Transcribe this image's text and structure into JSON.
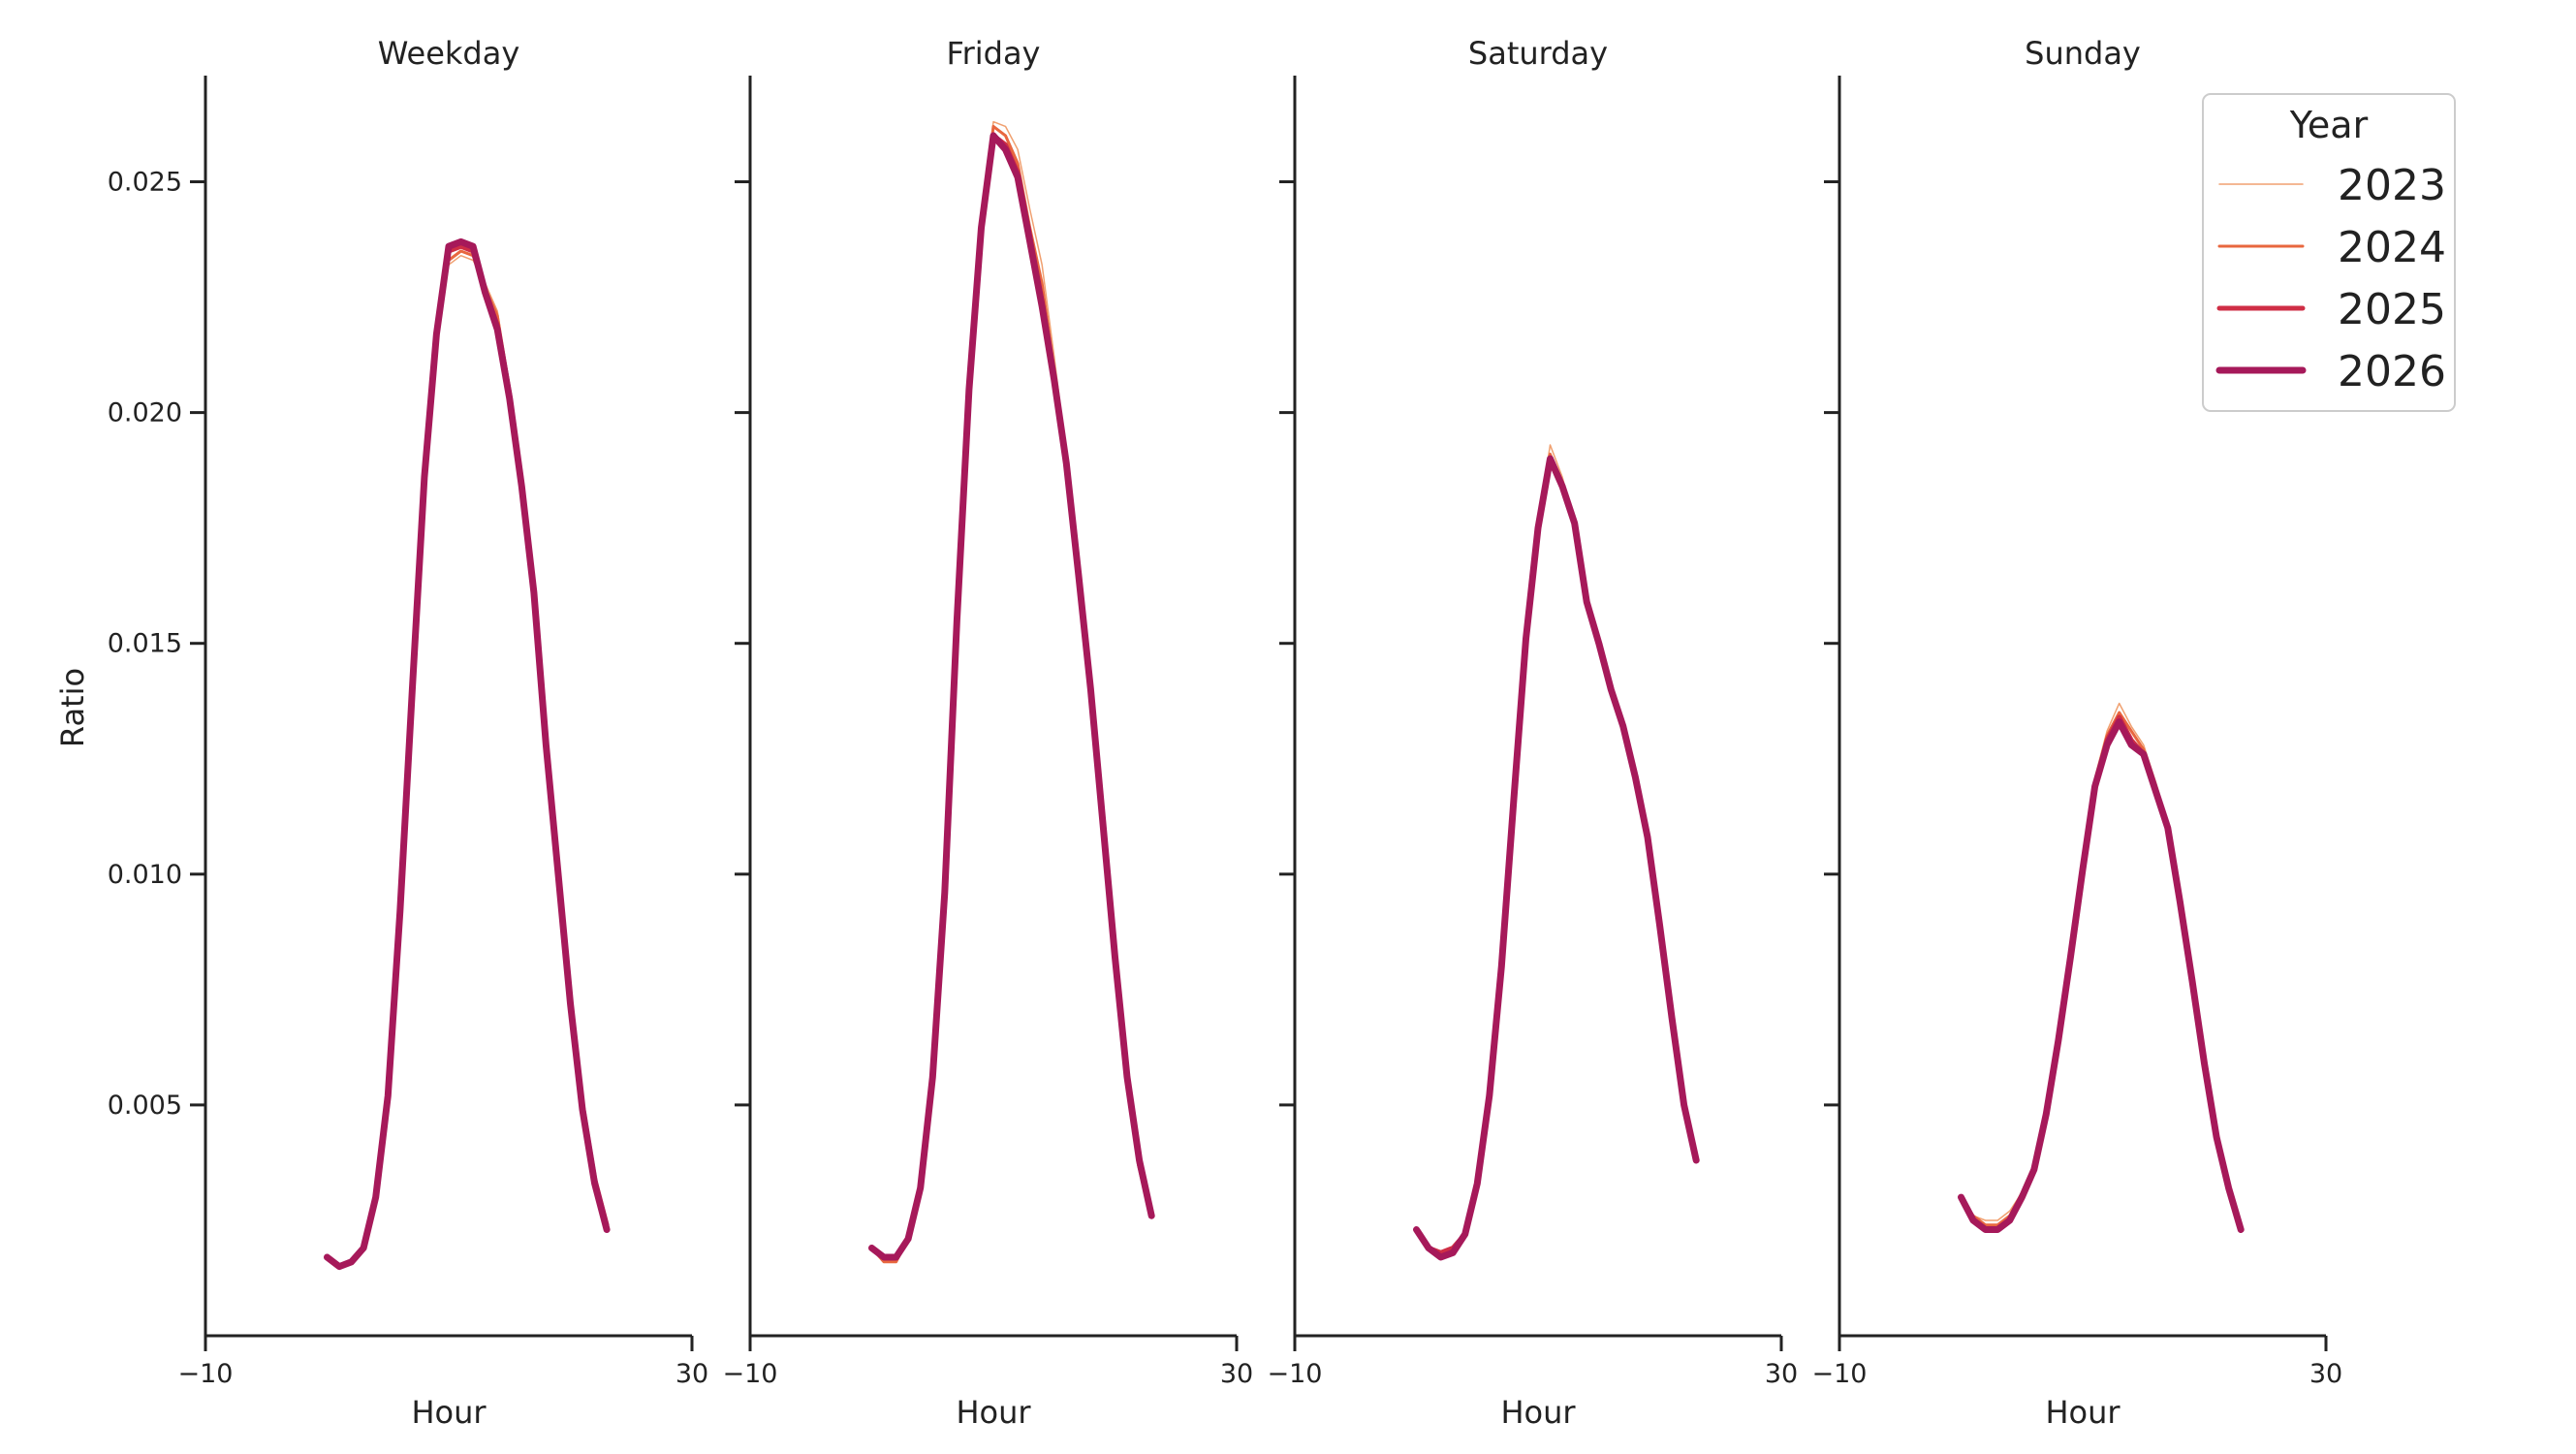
{
  "chart_data": {
    "type": "line",
    "xlabel": "Hour",
    "ylabel": "Ratio",
    "xlim": [
      -10,
      30
    ],
    "ylim": [
      0,
      0.0273
    ],
    "x_ticks": [
      -10,
      30
    ],
    "x_tick_labels": [
      "−10",
      "30"
    ],
    "y_ticks": [
      0.005,
      0.01,
      0.015,
      0.02,
      0.025
    ],
    "y_tick_labels": [
      "0.005",
      "0.010",
      "0.015",
      "0.020",
      "0.025"
    ],
    "grid": false,
    "legend": {
      "title": "Year",
      "placement": "top-right",
      "entries": [
        {
          "label": "2023",
          "color": "#f0a070",
          "width": 1.5
        },
        {
          "label": "2024",
          "color": "#e8673f",
          "width": 3
        },
        {
          "label": "2025",
          "color": "#cf2e45",
          "width": 5
        },
        {
          "label": "2026",
          "color": "#a6195a",
          "width": 7
        }
      ]
    },
    "hours": [
      0,
      1,
      2,
      3,
      4,
      5,
      6,
      7,
      8,
      9,
      10,
      11,
      12,
      13,
      14,
      15,
      16,
      17,
      18,
      19,
      20,
      21,
      22,
      23
    ],
    "panels": [
      {
        "title": "Weekday",
        "series": [
          {
            "year": "2023",
            "values": [
              0.0017,
              0.0015,
              0.0016,
              0.0019,
              0.003,
              0.0052,
              0.0092,
              0.014,
              0.0186,
              0.0218,
              0.0232,
              0.0234,
              0.0233,
              0.0228,
              0.0222,
              0.0205,
              0.0185,
              0.0161,
              0.0128,
              0.01,
              0.0072,
              0.005,
              0.0034,
              0.0024
            ]
          },
          {
            "year": "2024",
            "values": [
              0.0017,
              0.0015,
              0.0016,
              0.0019,
              0.003,
              0.0052,
              0.0092,
              0.014,
              0.0186,
              0.0217,
              0.0233,
              0.0235,
              0.0234,
              0.0227,
              0.0221,
              0.0205,
              0.0185,
              0.0161,
              0.0128,
              0.01,
              0.0072,
              0.005,
              0.0034,
              0.0024
            ]
          },
          {
            "year": "2025",
            "values": [
              0.0017,
              0.0015,
              0.0016,
              0.0019,
              0.003,
              0.0052,
              0.0092,
              0.014,
              0.0186,
              0.0217,
              0.0235,
              0.0236,
              0.0235,
              0.0226,
              0.0219,
              0.0204,
              0.0185,
              0.0161,
              0.0128,
              0.01,
              0.0072,
              0.005,
              0.0034,
              0.0024
            ]
          },
          {
            "year": "2026",
            "values": [
              0.0017,
              0.0015,
              0.0016,
              0.0019,
              0.003,
              0.0052,
              0.0092,
              0.014,
              0.0186,
              0.0217,
              0.0236,
              0.0237,
              0.0236,
              0.0226,
              0.0218,
              0.0203,
              0.0184,
              0.0161,
              0.0128,
              0.01,
              0.0072,
              0.0049,
              0.0033,
              0.0023
            ]
          }
        ]
      },
      {
        "title": "Friday",
        "series": [
          {
            "year": "2023",
            "values": [
              0.0019,
              0.0016,
              0.0016,
              0.0021,
              0.0031,
              0.0055,
              0.0095,
              0.0155,
              0.0207,
              0.0242,
              0.0263,
              0.0262,
              0.0257,
              0.0244,
              0.0232,
              0.0212,
              0.0191,
              0.0165,
              0.014,
              0.011,
              0.008,
              0.0055,
              0.0037,
              0.0026
            ]
          },
          {
            "year": "2024",
            "values": [
              0.0019,
              0.0016,
              0.0016,
              0.0021,
              0.0031,
              0.0055,
              0.0095,
              0.0155,
              0.0207,
              0.0241,
              0.0262,
              0.026,
              0.0254,
              0.024,
              0.0228,
              0.0209,
              0.019,
              0.0165,
              0.014,
              0.011,
              0.008,
              0.0055,
              0.0037,
              0.0026
            ]
          },
          {
            "year": "2025",
            "values": [
              0.0019,
              0.0017,
              0.0017,
              0.0021,
              0.0032,
              0.0055,
              0.0095,
              0.0155,
              0.0205,
              0.024,
              0.026,
              0.0258,
              0.0252,
              0.0237,
              0.0224,
              0.0207,
              0.0189,
              0.0165,
              0.014,
              0.0111,
              0.0081,
              0.0056,
              0.0037,
              0.0026
            ]
          },
          {
            "year": "2026",
            "values": [
              0.0019,
              0.0017,
              0.0017,
              0.0021,
              0.0032,
              0.0056,
              0.0096,
              0.0155,
              0.0205,
              0.024,
              0.026,
              0.0257,
              0.0251,
              0.0237,
              0.0223,
              0.0207,
              0.0189,
              0.0165,
              0.014,
              0.0111,
              0.0082,
              0.0056,
              0.0038,
              0.0026
            ]
          }
        ]
      },
      {
        "title": "Saturday",
        "series": [
          {
            "year": "2023",
            "values": [
              0.0023,
              0.0019,
              0.0018,
              0.0019,
              0.0022,
              0.0033,
              0.0052,
              0.008,
              0.0116,
              0.0152,
              0.0176,
              0.0193,
              0.0186,
              0.0176,
              0.0158,
              0.015,
              0.014,
              0.0132,
              0.0121,
              0.0108,
              0.0089,
              0.0069,
              0.005,
              0.0038
            ]
          },
          {
            "year": "2024",
            "values": [
              0.0023,
              0.0019,
              0.0018,
              0.0019,
              0.0022,
              0.0033,
              0.0052,
              0.008,
              0.0116,
              0.0151,
              0.0175,
              0.0191,
              0.0184,
              0.0175,
              0.0158,
              0.015,
              0.014,
              0.0132,
              0.0121,
              0.0108,
              0.0089,
              0.0069,
              0.005,
              0.0038
            ]
          },
          {
            "year": "2025",
            "values": [
              0.0023,
              0.0019,
              0.0018,
              0.0019,
              0.0022,
              0.0033,
              0.0052,
              0.008,
              0.0116,
              0.0151,
              0.0175,
              0.019,
              0.0184,
              0.0176,
              0.0159,
              0.015,
              0.014,
              0.0132,
              0.0121,
              0.0108,
              0.0089,
              0.0069,
              0.005,
              0.0038
            ]
          },
          {
            "year": "2026",
            "values": [
              0.0023,
              0.0019,
              0.0017,
              0.0018,
              0.0022,
              0.0033,
              0.0052,
              0.008,
              0.0116,
              0.0151,
              0.0175,
              0.019,
              0.0184,
              0.0176,
              0.0159,
              0.015,
              0.014,
              0.0132,
              0.0121,
              0.0108,
              0.0089,
              0.0069,
              0.005,
              0.0038
            ]
          }
        ]
      },
      {
        "title": "Sunday",
        "series": [
          {
            "year": "2023",
            "values": [
              0.003,
              0.0026,
              0.0025,
              0.0025,
              0.0027,
              0.0031,
              0.0037,
              0.0048,
              0.0064,
              0.0084,
              0.0104,
              0.0121,
              0.0131,
              0.0137,
              0.0132,
              0.0128,
              0.012,
              0.0111,
              0.0094,
              0.0078,
              0.006,
              0.0044,
              0.0033,
              0.0024
            ]
          },
          {
            "year": "2024",
            "values": [
              0.003,
              0.0026,
              0.0024,
              0.0024,
              0.0026,
              0.0031,
              0.0037,
              0.0048,
              0.0064,
              0.0083,
              0.0103,
              0.012,
              0.013,
              0.0135,
              0.0131,
              0.0127,
              0.0119,
              0.0111,
              0.0094,
              0.0078,
              0.006,
              0.0044,
              0.0033,
              0.0024
            ]
          },
          {
            "year": "2025",
            "values": [
              0.003,
              0.0025,
              0.0023,
              0.0023,
              0.0025,
              0.003,
              0.0036,
              0.0048,
              0.0064,
              0.0082,
              0.0102,
              0.0119,
              0.0129,
              0.0134,
              0.0129,
              0.0126,
              0.0118,
              0.011,
              0.0094,
              0.0077,
              0.0059,
              0.0043,
              0.0032,
              0.0023
            ]
          },
          {
            "year": "2026",
            "values": [
              0.003,
              0.0025,
              0.0023,
              0.0023,
              0.0025,
              0.003,
              0.0036,
              0.0048,
              0.0064,
              0.0082,
              0.0101,
              0.0119,
              0.0128,
              0.0133,
              0.0128,
              0.0126,
              0.0118,
              0.011,
              0.0094,
              0.0077,
              0.0059,
              0.0043,
              0.0032,
              0.0023
            ]
          }
        ]
      }
    ]
  }
}
